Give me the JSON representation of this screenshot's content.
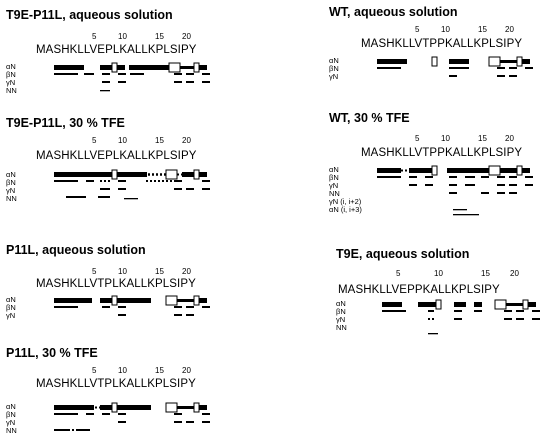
{
  "panels": [
    {
      "id": "t9e-p11l-aq",
      "title": "T9E-P11L, aqueous solution",
      "numbers": [
        "5",
        "10",
        "15",
        "20"
      ],
      "sequence": "MASHKLLVEPLKALLKPLSIPY",
      "rows": [
        "αN",
        "βN",
        "γN",
        "NN"
      ]
    },
    {
      "id": "t9e-p11l-tfe",
      "title": "T9E-P11L, 30 % TFE",
      "numbers": [
        "5",
        "10",
        "15",
        "20"
      ],
      "sequence": "MASHKLLVEPLKALLKPLSIPY",
      "rows": [
        "αN",
        "βN",
        "γN",
        "NN"
      ]
    },
    {
      "id": "p11l-aq",
      "title": "P11L, aqueous solution",
      "numbers": [
        "5",
        "10",
        "15",
        "20"
      ],
      "sequence": "MASHKLLVTPLKALLKPLSIPY",
      "rows": [
        "αN",
        "βN",
        "γN"
      ]
    },
    {
      "id": "p11l-tfe",
      "title": "P11L, 30 % TFE",
      "numbers": [
        "5",
        "10",
        "15",
        "20"
      ],
      "sequence": "MASHKLLVTPLKALLKPLSIPY",
      "rows": [
        "αN",
        "βN",
        "γN",
        "NN"
      ]
    },
    {
      "id": "wt-aq",
      "title": "WT, aqueous solution",
      "numbers": [
        "5",
        "10",
        "15",
        "20"
      ],
      "sequence": "MASHKLLVTPPKALLKPLSIPY",
      "rows": [
        "αN",
        "βN",
        "γN"
      ]
    },
    {
      "id": "wt-tfe",
      "title": "WT, 30 % TFE",
      "numbers": [
        "5",
        "10",
        "15",
        "20"
      ],
      "sequence": "MASHKLLVTPPKALLKPLSIPY",
      "rows": [
        "αN",
        "βN",
        "γN",
        "NN",
        "γN (i, i+2)",
        "αN (i, i+3)"
      ]
    },
    {
      "id": "t9e-aq",
      "title": "T9E, aqueous solution",
      "numbers": [
        "5",
        "10",
        "15",
        "20"
      ],
      "sequence": "MASHKLLVEPPKALLKPLSIPY",
      "rows": [
        "αN",
        "βN",
        "γN",
        "NN"
      ]
    }
  ]
}
